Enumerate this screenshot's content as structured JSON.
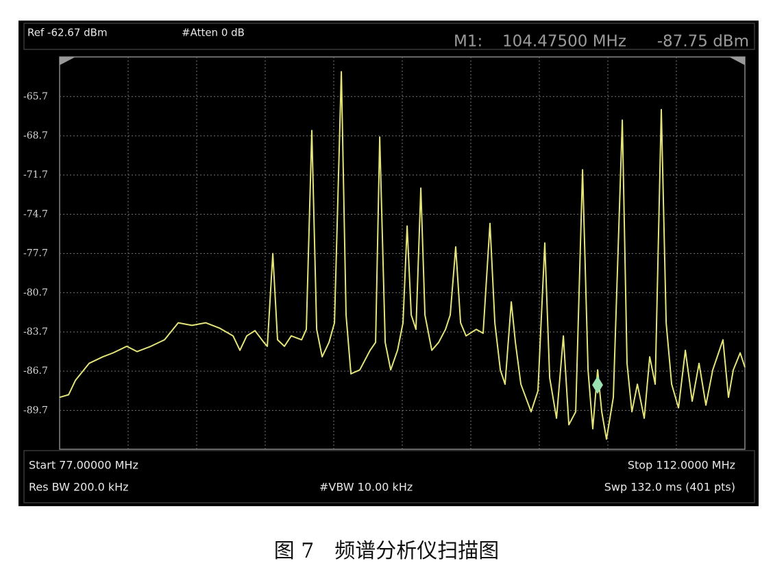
{
  "chart_data": {
    "type": "line",
    "header": {
      "ref": "Ref -62.67 dBm",
      "atten": "#Atten 0 dB"
    },
    "marker": {
      "label": "M1:",
      "x": 104.475,
      "x_label": "104.47500 MHz",
      "y": -87.75,
      "y_label": "-87.75 dBm",
      "color": "#9be0b0"
    },
    "footer": {
      "start": "Start 77.00000 MHz",
      "stop": "Stop 112.0000 MHz",
      "rbw": "Res BW 200.0 kHz",
      "vbw": "#VBW 10.00 kHz",
      "sweep": "Swp 132.0 ms (401 pts)"
    },
    "x": [
      77.0,
      77.46,
      77.81,
      78.51,
      79.21,
      79.73,
      80.43,
      80.96,
      81.66,
      82.36,
      83.06,
      83.76,
      84.46,
      85.16,
      85.86,
      86.21,
      86.56,
      86.98,
      87.43,
      87.61,
      87.89,
      88.13,
      88.48,
      88.83,
      89.36,
      89.6,
      89.88,
      90.13,
      90.41,
      90.76,
      91.04,
      91.39,
      91.63,
      91.88,
      92.33,
      92.86,
      93.14,
      93.35,
      93.63,
      93.91,
      94.26,
      94.54,
      94.75,
      94.96,
      95.2,
      95.45,
      95.66,
      96.01,
      96.36,
      96.71,
      96.95,
      97.23,
      97.48,
      97.76,
      98.28,
      98.63,
      98.98,
      99.23,
      99.51,
      99.75,
      100.07,
      100.28,
      100.56,
      101.08,
      101.43,
      101.78,
      102.03,
      102.38,
      102.73,
      103.01,
      103.36,
      103.71,
      103.99,
      104.23,
      104.48,
      104.69,
      104.93,
      105.28,
      105.74,
      105.98,
      106.23,
      106.51,
      106.86,
      107.14,
      107.42,
      107.73,
      107.98,
      108.26,
      108.61,
      108.96,
      109.31,
      109.66,
      110.01,
      110.36,
      110.88,
      111.16,
      111.41,
      111.76,
      112.0
    ],
    "series": [
      {
        "color": "#e4e47a",
        "values": [
          -88.7,
          -88.5,
          -87.4,
          -86.1,
          -85.6,
          -85.3,
          -84.8,
          -85.2,
          -84.8,
          -84.3,
          -83.0,
          -83.2,
          -83.0,
          -83.4,
          -84.0,
          -85.1,
          -84.0,
          -83.6,
          -84.5,
          -84.8,
          -77.7,
          -84.3,
          -84.8,
          -84.0,
          -84.3,
          -83.5,
          -68.3,
          -83.5,
          -85.6,
          -84.5,
          -83.0,
          -63.8,
          -82.4,
          -86.9,
          -86.6,
          -85.1,
          -84.5,
          -68.8,
          -84.5,
          -86.6,
          -85.1,
          -83.0,
          -75.6,
          -82.4,
          -83.5,
          -72.7,
          -82.4,
          -85.1,
          -84.5,
          -83.5,
          -82.4,
          -77.2,
          -83.0,
          -84.0,
          -83.5,
          -83.8,
          -75.4,
          -83.0,
          -86.6,
          -87.7,
          -81.4,
          -84.5,
          -87.7,
          -89.8,
          -88.2,
          -76.9,
          -87.2,
          -90.3,
          -84.0,
          -90.8,
          -89.8,
          -71.3,
          -86.6,
          -91.1,
          -86.6,
          -89.8,
          -91.9,
          -88.7,
          -67.5,
          -86.1,
          -89.8,
          -87.7,
          -90.3,
          -85.6,
          -87.7,
          -66.7,
          -83.0,
          -87.7,
          -89.5,
          -85.1,
          -89.0,
          -86.1,
          -89.3,
          -86.6,
          -84.3,
          -88.7,
          -86.6,
          -85.3,
          -86.4
        ]
      }
    ],
    "xlim": [
      77,
      112
    ],
    "ylim": [
      -92.67,
      -62.67
    ],
    "yticks": [
      -65.7,
      -68.7,
      -71.7,
      -74.7,
      -77.7,
      -80.7,
      -83.7,
      -86.7,
      -89.7
    ],
    "grid": true
  },
  "caption": "图 7　频谱分析仪扫描图"
}
